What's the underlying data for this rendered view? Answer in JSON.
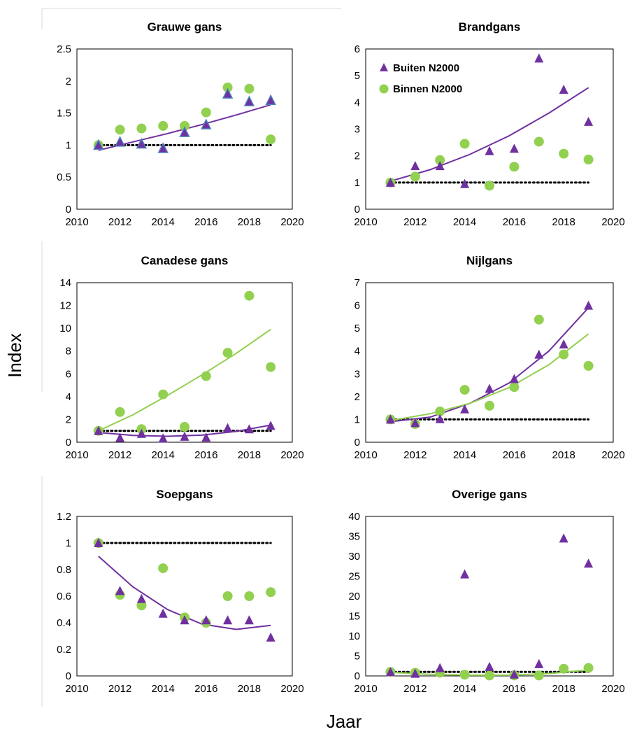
{
  "figure": {
    "xlabel": "Jaar",
    "ylabel": "Index",
    "colors": {
      "buiten": "#7030a0",
      "binnen": "#92d050",
      "buiten_outline": "#4f81bd",
      "baseline": "#000000"
    },
    "legend": {
      "placement": "top-left-of-panel-brandgans"
    }
  },
  "chart_data": [
    {
      "type": "scatter",
      "title": "Grauwe gans",
      "xlim": [
        2010,
        2020
      ],
      "xticks": [
        2010,
        2012,
        2014,
        2016,
        2018,
        2020
      ],
      "ylim": [
        0,
        2.5
      ],
      "yticks": [
        0,
        0.5,
        1,
        1.5,
        2,
        2.5
      ],
      "ytick_labels": [
        "0",
        "0.5",
        "1",
        "1.5",
        "2",
        "2.5"
      ],
      "x": [
        2011,
        2012,
        2013,
        2014,
        2015,
        2016,
        2017,
        2018,
        2019
      ],
      "series": [
        {
          "name": "Buiten N2000",
          "marker": "triangle",
          "values": [
            1.0,
            1.05,
            1.02,
            0.95,
            1.2,
            1.32,
            1.8,
            1.68,
            1.7
          ],
          "trend": [
            0.92,
            1.05,
            1.18,
            1.32,
            1.47,
            1.63
          ],
          "outlined": true
        },
        {
          "name": "Binnen N2000",
          "marker": "circle",
          "values": [
            1.0,
            1.24,
            1.26,
            1.3,
            1.3,
            1.51,
            1.9,
            1.88,
            1.09
          ]
        }
      ],
      "baseline": 1
    },
    {
      "type": "scatter",
      "title": "Brandgans",
      "xlim": [
        2010,
        2020
      ],
      "xticks": [
        2010,
        2012,
        2014,
        2016,
        2018,
        2020
      ],
      "ylim": [
        0,
        6
      ],
      "yticks": [
        0,
        1,
        2,
        3,
        4,
        5,
        6
      ],
      "ytick_labels": [
        "0",
        "1",
        "2",
        "3",
        "4",
        "5",
        "6"
      ],
      "x": [
        2011,
        2012,
        2013,
        2014,
        2015,
        2016,
        2017,
        2018,
        2019
      ],
      "series": [
        {
          "name": "Buiten N2000",
          "marker": "triangle",
          "values": [
            1.0,
            1.62,
            1.62,
            0.95,
            2.18,
            2.27,
            5.65,
            4.48,
            3.28
          ],
          "trend": [
            1.05,
            1.48,
            2.05,
            2.75,
            3.6,
            4.55
          ]
        },
        {
          "name": "Binnen N2000",
          "marker": "circle",
          "values": [
            1.0,
            1.22,
            1.84,
            2.45,
            0.88,
            1.59,
            2.53,
            2.08,
            1.86
          ]
        }
      ],
      "baseline": 1,
      "legend": true
    },
    {
      "type": "scatter",
      "title": "Canadese gans",
      "xlim": [
        2010,
        2020
      ],
      "xticks": [
        2010,
        2012,
        2014,
        2016,
        2018,
        2020
      ],
      "ylim": [
        0,
        14
      ],
      "yticks": [
        0,
        2,
        4,
        6,
        8,
        10,
        12,
        14
      ],
      "ytick_labels": [
        "0",
        "2",
        "4",
        "6",
        "8",
        "10",
        "12",
        "14"
      ],
      "x": [
        2011,
        2012,
        2013,
        2014,
        2015,
        2016,
        2017,
        2018,
        2019
      ],
      "series": [
        {
          "name": "Buiten N2000",
          "marker": "triangle",
          "values": [
            1.0,
            0.4,
            0.75,
            0.35,
            0.5,
            0.42,
            1.25,
            1.15,
            1.45
          ],
          "trend": [
            0.85,
            0.6,
            0.52,
            0.62,
            0.95,
            1.5
          ]
        },
        {
          "name": "Binnen N2000",
          "marker": "circle",
          "values": [
            1.0,
            2.65,
            1.15,
            4.2,
            1.35,
            5.8,
            7.85,
            12.85,
            6.6
          ],
          "trend": [
            1.0,
            2.4,
            4.1,
            5.9,
            7.8,
            9.9
          ]
        }
      ],
      "baseline": 1
    },
    {
      "type": "scatter",
      "title": "Nijlgans",
      "xlim": [
        2010,
        2020
      ],
      "xticks": [
        2010,
        2012,
        2014,
        2016,
        2018,
        2020
      ],
      "ylim": [
        0,
        7
      ],
      "yticks": [
        0,
        1,
        2,
        3,
        4,
        5,
        6,
        7
      ],
      "ytick_labels": [
        "0",
        "1",
        "2",
        "3",
        "4",
        "5",
        "6",
        "7"
      ],
      "x": [
        2011,
        2012,
        2013,
        2014,
        2015,
        2016,
        2017,
        2018,
        2019
      ],
      "series": [
        {
          "name": "Buiten N2000",
          "marker": "triangle",
          "values": [
            1.0,
            0.85,
            1.02,
            1.45,
            2.35,
            2.78,
            3.85,
            4.3,
            6.0
          ],
          "trend": [
            0.9,
            1.1,
            1.7,
            2.6,
            4.0,
            5.9
          ]
        },
        {
          "name": "Binnen N2000",
          "marker": "circle",
          "values": [
            1.0,
            0.8,
            1.35,
            2.3,
            1.6,
            2.42,
            5.38,
            3.85,
            3.35
          ],
          "trend": [
            0.95,
            1.25,
            1.7,
            2.4,
            3.4,
            4.75
          ]
        }
      ],
      "baseline": 1
    },
    {
      "type": "scatter",
      "title": "Soepgans",
      "xlim": [
        2010,
        2020
      ],
      "xticks": [
        2010,
        2012,
        2014,
        2016,
        2018,
        2020
      ],
      "ylim": [
        0,
        1.2
      ],
      "yticks": [
        0,
        0.2,
        0.4,
        0.6,
        0.8,
        1,
        1.2
      ],
      "ytick_labels": [
        "0",
        "0.2",
        "0.4",
        "0.6",
        "0.8",
        "1",
        "1.2"
      ],
      "x": [
        2011,
        2012,
        2013,
        2014,
        2015,
        2016,
        2017,
        2018,
        2019
      ],
      "series": [
        {
          "name": "Buiten N2000",
          "marker": "triangle",
          "values": [
            1.0,
            0.64,
            0.58,
            0.47,
            0.42,
            0.42,
            0.42,
            0.42,
            0.29
          ],
          "trend": [
            0.9,
            0.67,
            0.5,
            0.39,
            0.35,
            0.38
          ]
        },
        {
          "name": "Binnen N2000",
          "marker": "circle",
          "values": [
            1.0,
            0.61,
            0.53,
            0.81,
            0.44,
            0.4,
            0.6,
            0.6,
            0.63
          ]
        }
      ],
      "baseline": 1
    },
    {
      "type": "scatter",
      "title": "Overige gans",
      "xlim": [
        2010,
        2020
      ],
      "xticks": [
        2010,
        2012,
        2014,
        2016,
        2018,
        2020
      ],
      "ylim": [
        0,
        40
      ],
      "yticks": [
        0,
        5,
        10,
        15,
        20,
        25,
        30,
        35,
        40
      ],
      "ytick_labels": [
        "0",
        "5",
        "10",
        "15",
        "20",
        "25",
        "30",
        "35",
        "40"
      ],
      "x": [
        2011,
        2012,
        2013,
        2014,
        2015,
        2016,
        2017,
        2018,
        2019
      ],
      "series": [
        {
          "name": "Buiten N2000",
          "marker": "triangle",
          "values": [
            1.0,
            0.6,
            2.0,
            25.5,
            2.3,
            0.4,
            3.0,
            34.5,
            28.2
          ]
        },
        {
          "name": "Binnen N2000",
          "marker": "circle",
          "values": [
            1.0,
            0.8,
            0.8,
            0.3,
            0.1,
            0.1,
            0.1,
            1.8,
            2.0
          ],
          "trend": [
            0.9,
            0.4,
            0.2,
            0.2,
            0.6,
            1.5
          ]
        }
      ],
      "baseline": 1
    }
  ]
}
